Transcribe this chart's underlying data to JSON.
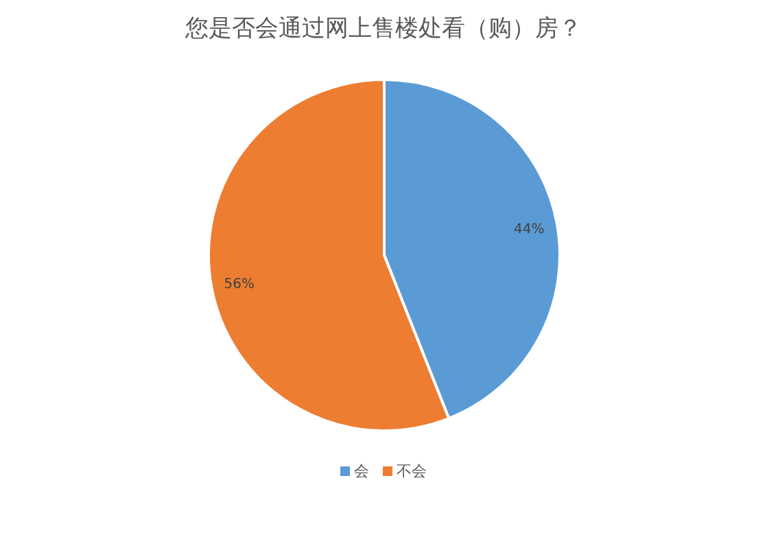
{
  "chart_data": {
    "type": "pie",
    "title": "您是否会通过网上售楼处看（购）房？",
    "categories": [
      "会",
      "不会"
    ],
    "values": [
      44,
      56
    ],
    "value_labels": [
      "44%",
      "56%"
    ],
    "colors": [
      "#5b9bd5",
      "#ed7d31"
    ],
    "legend": "bottom"
  }
}
